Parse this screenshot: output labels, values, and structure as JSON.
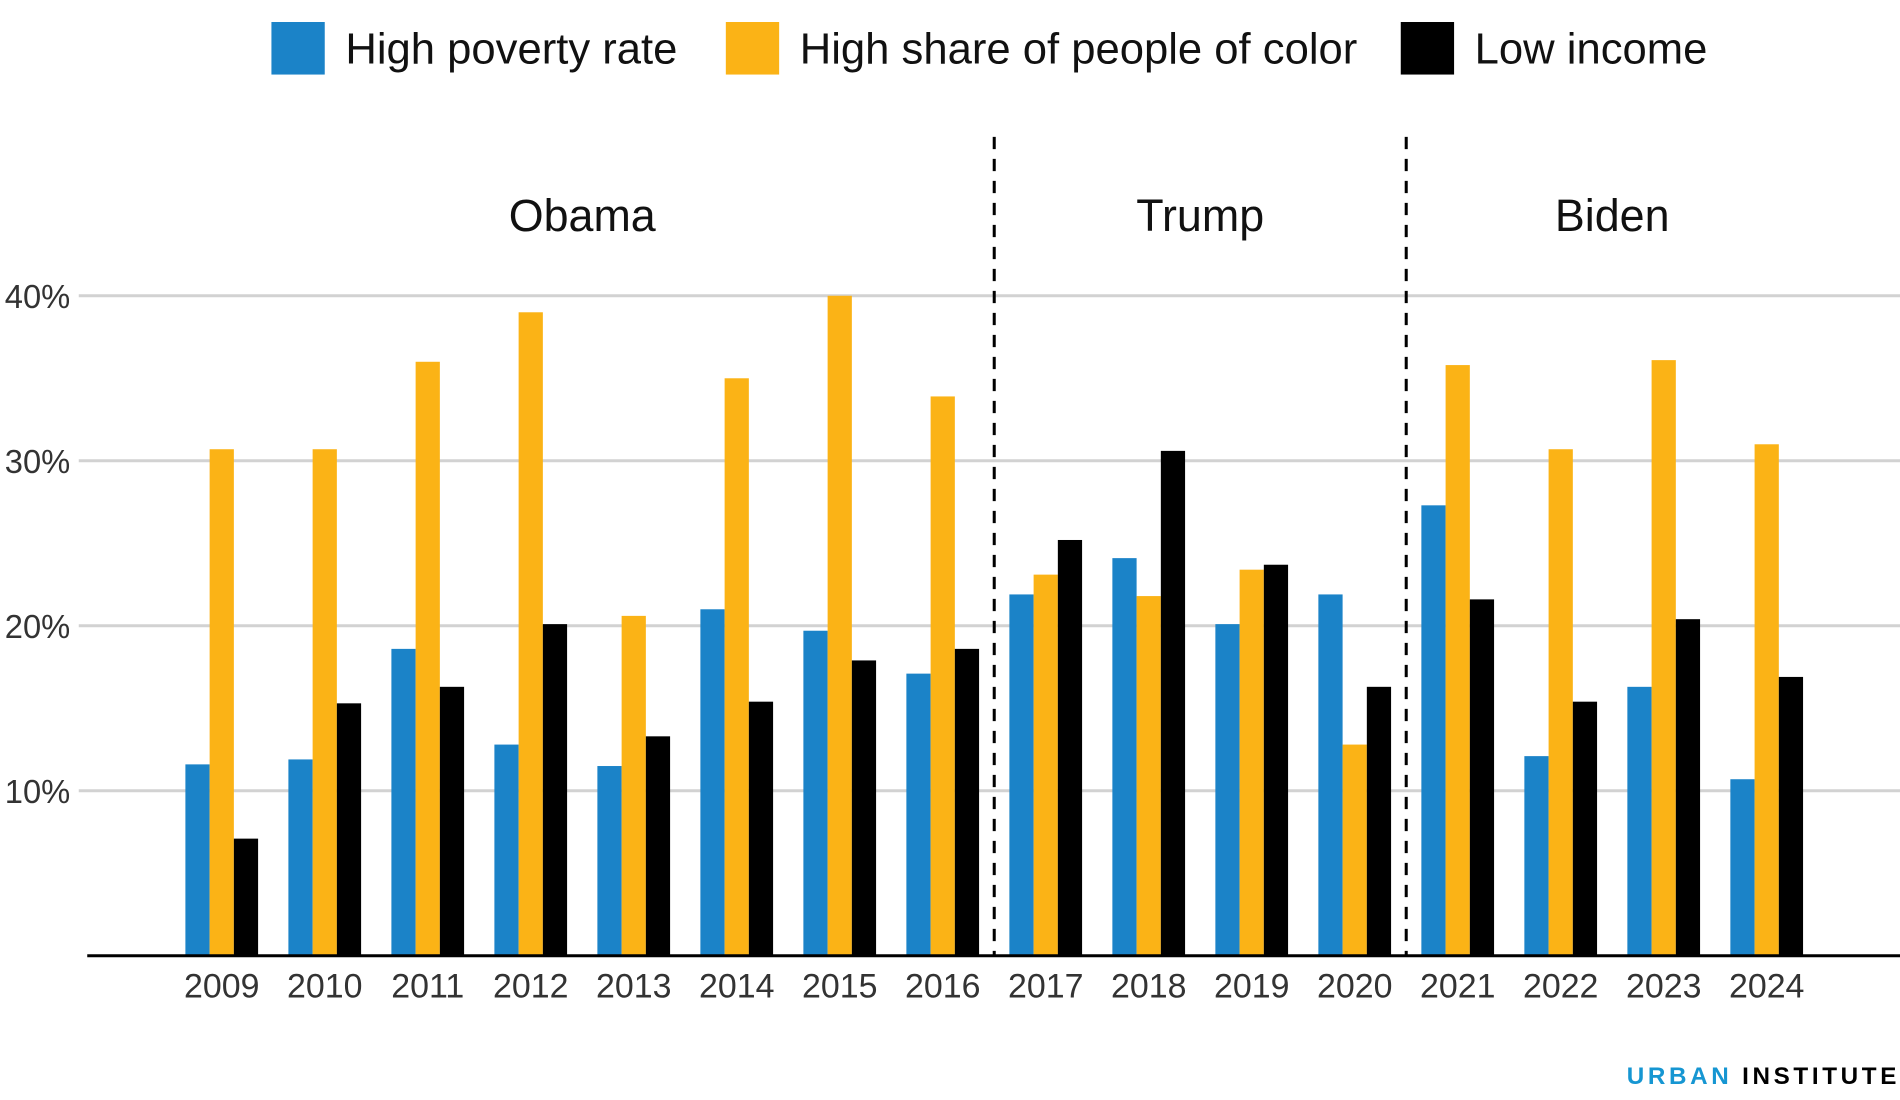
{
  "chart_data": {
    "type": "bar",
    "title": "",
    "xlabel": "",
    "ylabel": "",
    "ylim": [
      0,
      40
    ],
    "yticks": [
      10,
      20,
      30,
      40
    ],
    "ytick_labels": [
      "10%",
      "20%",
      "30%",
      "40%"
    ],
    "grid": true,
    "legend_position": "top",
    "categories": [
      "2009",
      "2010",
      "2011",
      "2012",
      "2013",
      "2014",
      "2015",
      "2016",
      "2017",
      "2018",
      "2019",
      "2020",
      "2021",
      "2022",
      "2023",
      "2024"
    ],
    "series": [
      {
        "name": "High poverty rate",
        "color": "#1b83c8",
        "values": [
          11.6,
          11.9,
          18.6,
          12.8,
          11.5,
          21.0,
          19.7,
          17.1,
          21.9,
          24.1,
          20.1,
          21.9,
          27.3,
          12.1,
          16.3,
          10.7
        ]
      },
      {
        "name": "High share of people of color",
        "color": "#fbb316",
        "values": [
          30.7,
          30.7,
          36.0,
          39.0,
          20.6,
          35.0,
          40.0,
          33.9,
          23.1,
          21.8,
          23.4,
          12.8,
          35.8,
          30.7,
          36.1,
          31.0
        ]
      },
      {
        "name": "Low income",
        "color": "#000000",
        "values": [
          7.1,
          15.3,
          16.3,
          20.1,
          13.3,
          15.4,
          17.9,
          18.6,
          25.2,
          30.6,
          23.7,
          16.3,
          21.6,
          15.4,
          20.4,
          16.9
        ]
      }
    ],
    "annotations": [
      {
        "label": "Obama",
        "from": "2009",
        "to": "2016"
      },
      {
        "label": "Trump",
        "from": "2017",
        "to": "2020"
      },
      {
        "label": "Biden",
        "from": "2021",
        "to": "2024"
      }
    ]
  },
  "logo": {
    "part1": "URBAN",
    "part2": "INSTITUTE",
    "color1": "#1696d2",
    "color2": "#000000"
  }
}
